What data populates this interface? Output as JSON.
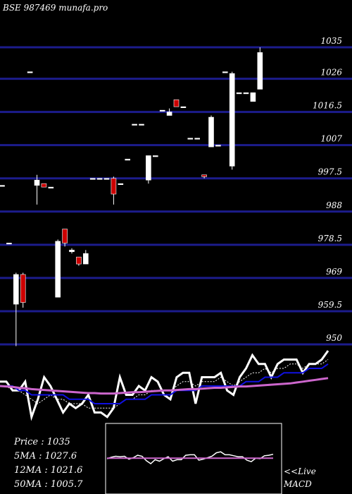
{
  "header": {
    "title": "BSE 987469 munafa.pro"
  },
  "colors": {
    "background": "#000000",
    "grid": "#1c1c8c",
    "up_candle": "#ffffff",
    "down_candle": "#cc0000",
    "ema_fast": "#1010e0",
    "ema_slow": "#cc66cc",
    "price_line": "#ffffff",
    "macd_signal": "#cc66cc"
  },
  "chart_data": [
    {
      "type": "candlestick",
      "title": "BSE 987469 munafa.pro",
      "ylim": [
        950,
        1035
      ],
      "y_ticks": [
        {
          "value": 1035,
          "label": "1035"
        },
        {
          "value": 1026,
          "label": "1026"
        },
        {
          "value": 1016.5,
          "label": "1016.5"
        },
        {
          "value": 1007,
          "label": "1007"
        },
        {
          "value": 997.5,
          "label": "997.5"
        },
        {
          "value": 988,
          "label": "988"
        },
        {
          "value": 978.5,
          "label": "978.5"
        },
        {
          "value": 969,
          "label": "969"
        },
        {
          "value": 959.5,
          "label": "959.5"
        },
        {
          "value": 950,
          "label": "950"
        }
      ],
      "grid": true,
      "candles": [
        {
          "o": 995.5,
          "h": 995.5,
          "l": 995.5,
          "c": 995.5
        },
        {
          "o": 979.0,
          "h": 979.0,
          "l": 979.0,
          "c": 979.0
        },
        {
          "o": 961.5,
          "h": 970.5,
          "l": 949.5,
          "c": 970.0
        },
        {
          "o": 970.0,
          "h": 970.5,
          "l": 960.5,
          "c": 962.0
        },
        {
          "o": 1028.0,
          "h": 1028.0,
          "l": 1028.0,
          "c": 1028.0
        },
        {
          "o": 995.5,
          "h": 998.5,
          "l": 990.0,
          "c": 997.0
        },
        {
          "o": 996.0,
          "h": 996.0,
          "l": 995.0,
          "c": 995.0
        },
        {
          "o": 995.0,
          "h": 995.0,
          "l": 995.0,
          "c": 995.0
        },
        {
          "o": 963.5,
          "h": 980.0,
          "l": 963.5,
          "c": 979.5
        },
        {
          "o": 983.0,
          "h": 983.0,
          "l": 978.0,
          "c": 979.0
        },
        {
          "o": 976.5,
          "h": 977.5,
          "l": 976.0,
          "c": 977.0
        },
        {
          "o": 975.0,
          "h": 975.0,
          "l": 972.5,
          "c": 973.0
        },
        {
          "o": 973.0,
          "h": 977.0,
          "l": 973.0,
          "c": 976.0
        },
        {
          "o": 997.5,
          "h": 997.5,
          "l": 997.5,
          "c": 997.5
        },
        {
          "o": 997.5,
          "h": 997.5,
          "l": 997.5,
          "c": 997.5
        },
        {
          "o": 997.5,
          "h": 997.5,
          "l": 997.5,
          "c": 997.5
        },
        {
          "o": 997.5,
          "h": 998.0,
          "l": 990.0,
          "c": 993.0
        },
        {
          "o": 996.0,
          "h": 996.0,
          "l": 996.0,
          "c": 996.0
        },
        {
          "o": 1003.0,
          "h": 1003.0,
          "l": 1003.0,
          "c": 1003.0
        },
        {
          "o": 1013.0,
          "h": 1013.0,
          "l": 1013.0,
          "c": 1013.0
        },
        {
          "o": 1013.0,
          "h": 1013.0,
          "l": 1013.0,
          "c": 1013.0
        },
        {
          "o": 997.0,
          "h": 1004.0,
          "l": 996.0,
          "c": 1004.0
        },
        {
          "o": 1004.0,
          "h": 1004.0,
          "l": 1004.0,
          "c": 1004.0
        },
        {
          "o": 1017.0,
          "h": 1017.0,
          "l": 1017.0,
          "c": 1017.0
        },
        {
          "o": 1015.5,
          "h": 1017.5,
          "l": 1015.5,
          "c": 1016.5
        },
        {
          "o": 1020.0,
          "h": 1020.0,
          "l": 1018.0,
          "c": 1018.0
        },
        {
          "o": 1018.0,
          "h": 1018.0,
          "l": 1018.0,
          "c": 1018.0
        },
        {
          "o": 1009.0,
          "h": 1009.0,
          "l": 1009.0,
          "c": 1009.0
        },
        {
          "o": 1009.0,
          "h": 1009.0,
          "l": 1009.0,
          "c": 1009.0
        },
        {
          "o": 998.5,
          "h": 998.5,
          "l": 997.5,
          "c": 998.0
        },
        {
          "o": 1006.5,
          "h": 1015.5,
          "l": 1006.5,
          "c": 1015.0
        },
        {
          "o": 1007.0,
          "h": 1007.0,
          "l": 1007.0,
          "c": 1007.0
        },
        {
          "o": 1028.0,
          "h": 1028.0,
          "l": 1028.0,
          "c": 1028.0
        },
        {
          "o": 1001.0,
          "h": 1028.0,
          "l": 1000.0,
          "c": 1027.5
        },
        {
          "o": 1022.0,
          "h": 1022.0,
          "l": 1022.0,
          "c": 1022.0
        },
        {
          "o": 1022.0,
          "h": 1022.0,
          "l": 1022.0,
          "c": 1022.0
        },
        {
          "o": 1019.5,
          "h": 1022.0,
          "l": 1019.5,
          "c": 1022.0
        },
        {
          "o": 1023.0,
          "h": 1035.0,
          "l": 1023.0,
          "c": 1033.5
        }
      ]
    },
    {
      "type": "line",
      "series": [
        {
          "name": "Price",
          "color": "#ffffff",
          "values": [
            9,
            9,
            7,
            7,
            9,
            1,
            5,
            10,
            8,
            5,
            2,
            4,
            3,
            4,
            6,
            2,
            2,
            1,
            3,
            10,
            6,
            6,
            8,
            7,
            10,
            9,
            6,
            5,
            10,
            11,
            11,
            4,
            10,
            10,
            10,
            11,
            7,
            6,
            10,
            12,
            15,
            13,
            13,
            10,
            13,
            14,
            14,
            14,
            11,
            13,
            13,
            14,
            16
          ]
        },
        {
          "name": "5MA",
          "color": "#ffffff",
          "dashed": true,
          "values": [
            8,
            8,
            7,
            7,
            6,
            5,
            4,
            5,
            6,
            5,
            5,
            4,
            4,
            4,
            3,
            3,
            3,
            3,
            3,
            4,
            5,
            5,
            6,
            6,
            7,
            7,
            7,
            7,
            8,
            9,
            9,
            8,
            9,
            9,
            9,
            10,
            9,
            8,
            9,
            10,
            11,
            11,
            12,
            11,
            12,
            12,
            13,
            13,
            12,
            13,
            13,
            13,
            14
          ]
        },
        {
          "name": "12MA",
          "color": "#1010e0",
          "values": [
            8,
            8,
            8,
            7,
            7,
            6,
            6,
            6,
            6,
            6,
            6,
            5,
            5,
            5,
            5,
            4,
            4,
            4,
            4,
            4,
            5,
            5,
            5,
            5,
            6,
            6,
            6,
            6,
            7,
            7,
            7,
            7,
            8,
            8,
            8,
            8,
            8,
            8,
            8,
            9,
            9,
            9,
            10,
            10,
            10,
            11,
            11,
            11,
            11,
            12,
            12,
            12,
            13
          ]
        },
        {
          "name": "50MA",
          "color": "#cc66cc",
          "values": [
            8,
            7.9,
            7.8,
            7.6,
            7.5,
            7.3,
            7.2,
            7.1,
            7.0,
            6.9,
            6.8,
            6.7,
            6.6,
            6.5,
            6.4,
            6.4,
            6.3,
            6.3,
            6.3,
            6.4,
            6.5,
            6.6,
            6.6,
            6.7,
            6.8,
            6.9,
            7.0,
            7.0,
            7.1,
            7.2,
            7.3,
            7.3,
            7.4,
            7.5,
            7.6,
            7.6,
            7.7,
            7.8,
            7.9,
            7.9,
            8.0,
            8.1,
            8.2,
            8.3,
            8.4,
            8.5,
            8.6,
            8.8,
            9.0,
            9.2,
            9.4,
            9.6,
            9.8
          ]
        }
      ]
    },
    {
      "type": "line",
      "label": "MACD",
      "series": [
        {
          "name": "MACD",
          "color": "#ffffff",
          "values": [
            0,
            0.3,
            0.5,
            0.4,
            0.5,
            -0.1,
            0.2,
            0.7,
            0.5,
            -0.4,
            -1.0,
            -0.2,
            -0.5,
            0,
            0.4,
            -0.5,
            -0.2,
            -0.2,
            0.7,
            0.8,
            0.8,
            -0.3,
            -0.1,
            0.2,
            0.5,
            1.2,
            1.4,
            0.8,
            0.8,
            0.6,
            0.4,
            0.4,
            -0.3,
            -0.6,
            0.1,
            0.0,
            0.6,
            0.7,
            0.9
          ]
        },
        {
          "name": "Signal",
          "color": "#cc66cc",
          "values": [
            0.1,
            0.1,
            0.1,
            0.1,
            0.1,
            0.1,
            0.1,
            0.1,
            0.1,
            0.1,
            0.1,
            0.1,
            0.1,
            0.1,
            0.1,
            0.1,
            0.1,
            0.1,
            0.1,
            0.1,
            0.1,
            0.1,
            0.1,
            0.1,
            0.1,
            0.1,
            0.1,
            0.1,
            0.1,
            0.1,
            0.1,
            0.1,
            0.1,
            0.1,
            0.1,
            0.1,
            0.1,
            0.1,
            0.1
          ]
        }
      ]
    }
  ],
  "stats": {
    "price": "Price   : 1035",
    "ma5": "5MA : 1027.6",
    "ma12": "12MA : 1021.6",
    "ma50": "50MA : 1005.7"
  },
  "macd_panel": {
    "live_label": "<<Live",
    "macd_label": "MACD"
  }
}
